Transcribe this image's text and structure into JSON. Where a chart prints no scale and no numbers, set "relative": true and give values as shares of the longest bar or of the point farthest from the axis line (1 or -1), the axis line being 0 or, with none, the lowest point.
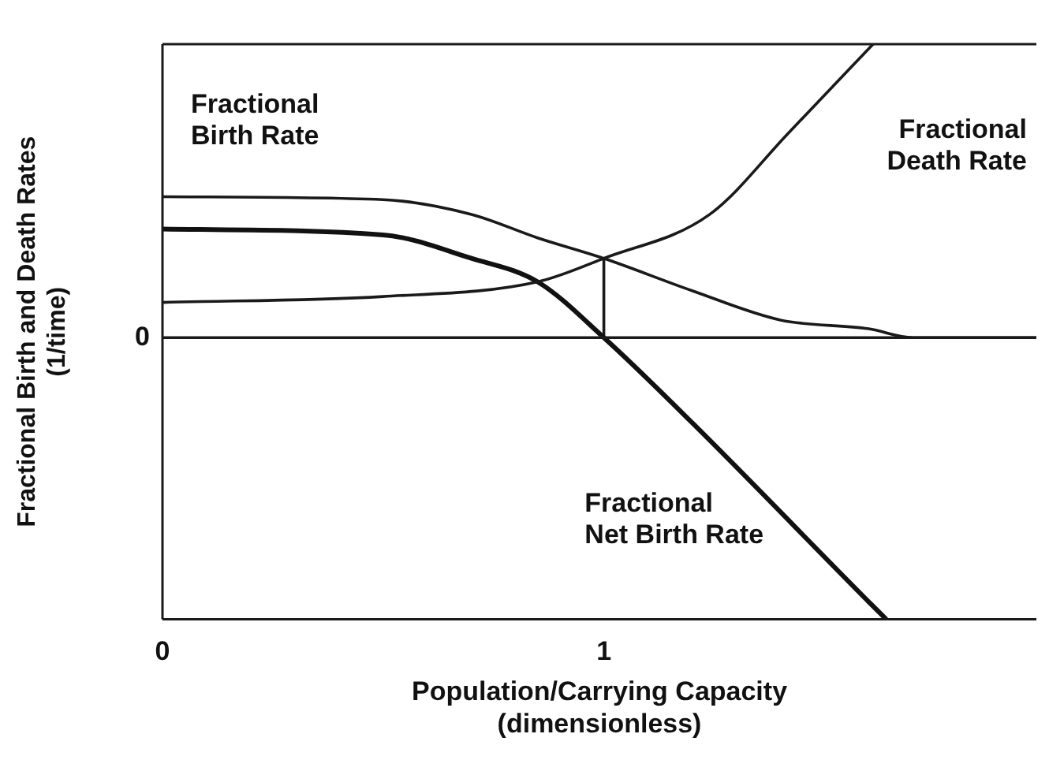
{
  "chart_data": {
    "type": "line",
    "relative": true,
    "xlabel": "Population/Carrying Capacity\n(dimensionless)",
    "ylabel": "Fractional Birth and Death Rates\n(1/time)",
    "xlim": [
      0,
      1.98
    ],
    "xticks": [
      0,
      1
    ],
    "annotations": [
      "0"
    ],
    "grid": false,
    "legend": false,
    "marker": "none",
    "line_style": "solid",
    "ref_lines": [
      {
        "axis": "y",
        "value": 0,
        "color": "#1a1a1a"
      }
    ],
    "series": [
      {
        "name": "Fractional\nBirth Rate",
        "color": "#1a1a1a",
        "x": [
          0,
          0.5,
          0.7,
          0.85,
          1,
          1.2,
          1.4,
          1.6,
          1.7,
          1.98
        ],
        "values": [
          0.48,
          0.47,
          0.42,
          0.34,
          0.27,
          0.16,
          0.06,
          0.03,
          0,
          0
        ]
      },
      {
        "name": "Fractional\nDeath Rate",
        "color": "#1a1a1a",
        "x": [
          0,
          0.5,
          0.85,
          1,
          1.24,
          1.42,
          1.61
        ],
        "values": [
          0.12,
          0.14,
          0.19,
          0.27,
          0.42,
          0.7,
          1
        ]
      },
      {
        "name": "Fractional\nNet Birth Rate",
        "color": "#111111",
        "x": [
          0,
          0.5,
          0.7,
          0.85,
          1,
          1.2,
          1.6,
          1.64
        ],
        "values": [
          0.37,
          0.35,
          0.27,
          0.19,
          0,
          -0.29,
          -0.9,
          -0.96
        ]
      },
      {
        "type": "line",
        "color": "#1a1a1a",
        "x": [
          1,
          1
        ],
        "values": [
          0,
          0.27
        ]
      }
    ]
  }
}
